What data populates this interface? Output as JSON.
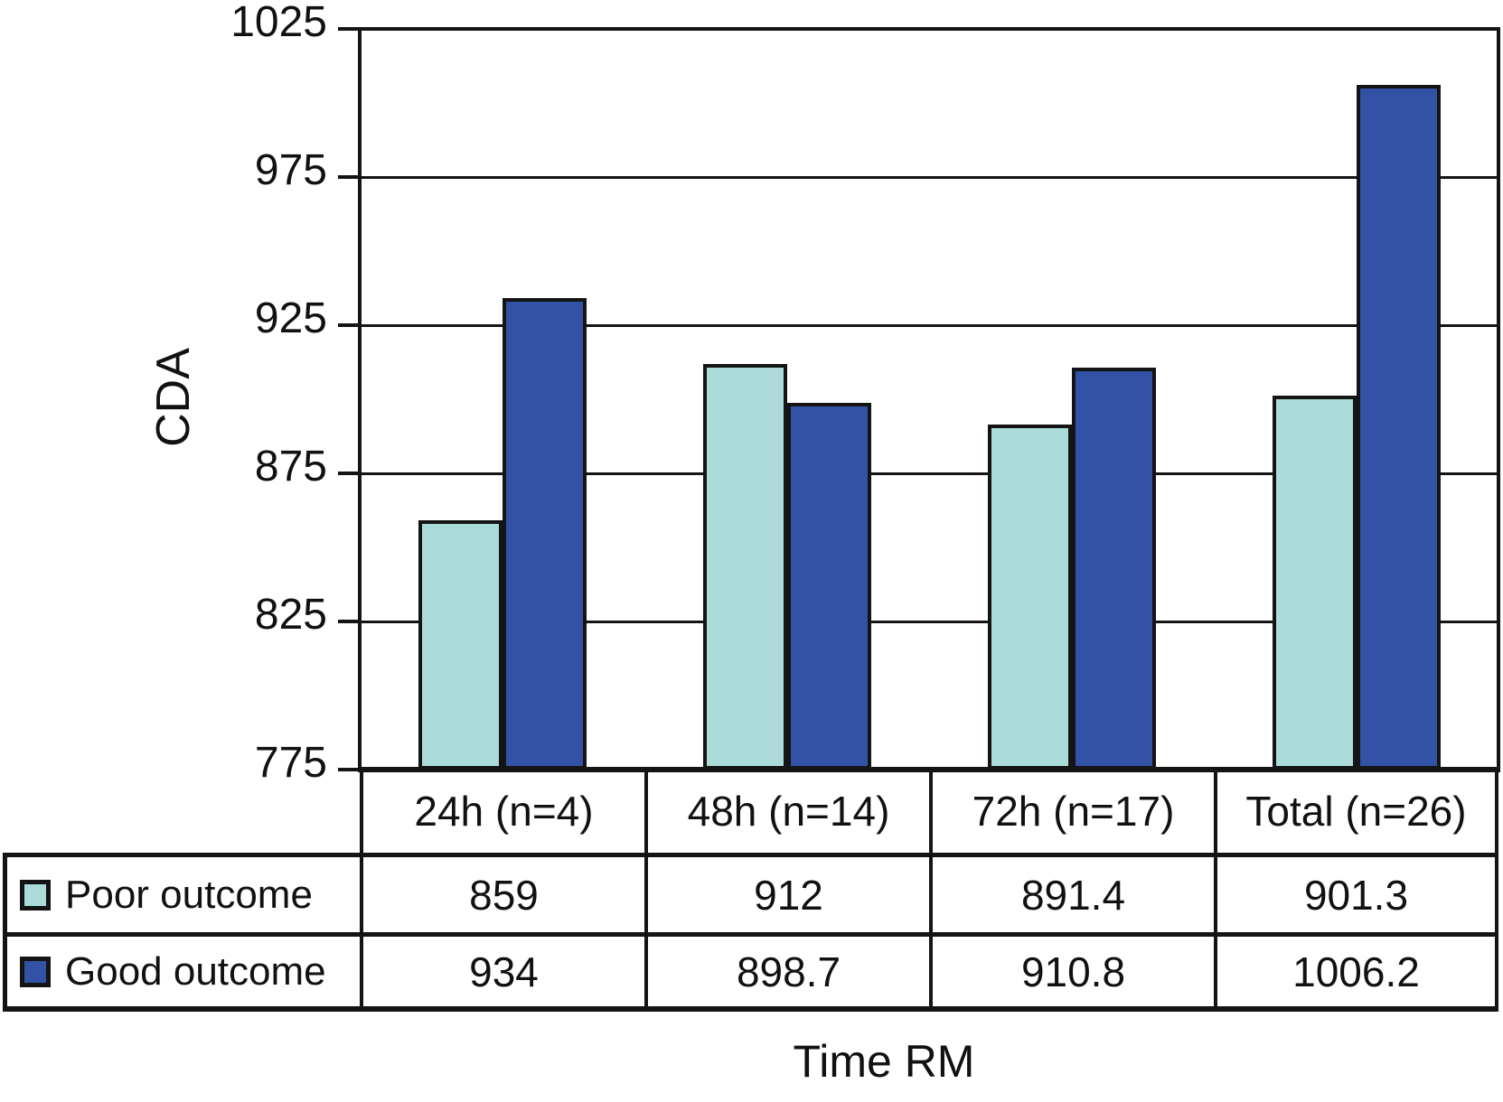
{
  "figure": {
    "background": "#ffffff",
    "line_color": "#141414",
    "text_color": "#111111"
  },
  "chart_data": {
    "type": "bar",
    "title": "",
    "ylabel": "CDA",
    "xlabel": "Time RM",
    "categories": [
      "24h (n=4)",
      "48h (n=14)",
      "72h (n=17)",
      "Total (n=26)"
    ],
    "series": [
      {
        "name": "Poor outcome",
        "color": "#abdcd9",
        "values": [
          859,
          912,
          891.4,
          901.3
        ]
      },
      {
        "name": "Good outcome",
        "color": "#3253a5",
        "values": [
          934,
          898.7,
          910.8,
          1006.2
        ]
      }
    ],
    "ylim": [
      775,
      1025
    ],
    "yticks": [
      775,
      825,
      875,
      925,
      975,
      1025
    ],
    "grid": true,
    "legend_position": "table-left",
    "data_table_shown": true
  }
}
